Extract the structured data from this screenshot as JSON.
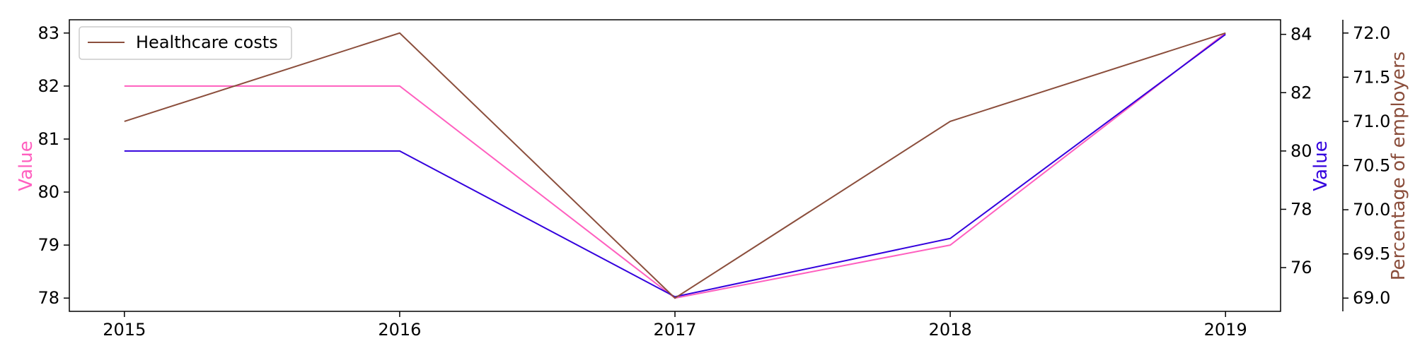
{
  "chart_data": {
    "type": "line",
    "x": [
      2015,
      2016,
      2017,
      2018,
      2019
    ],
    "xlim": [
      2014.8,
      2019.2
    ],
    "series": [
      {
        "key": "left",
        "name": "",
        "values": [
          82,
          82,
          78,
          79,
          83
        ],
        "color": "#ff5fbf",
        "axis": "left"
      },
      {
        "key": "right1",
        "name": "",
        "values": [
          80,
          80,
          75,
          77,
          84
        ],
        "color": "#3300dd",
        "axis": "right1"
      },
      {
        "key": "right2",
        "name": "Healthcare costs",
        "values": [
          71,
          72,
          69,
          71,
          72
        ],
        "color": "#8b4e3c",
        "axis": "right2"
      }
    ],
    "axes": {
      "left": {
        "label": "Value",
        "color": "#ff5fbf",
        "ylim": [
          77.75,
          83.25
        ],
        "ticks": [
          78,
          79,
          80,
          81,
          82,
          83
        ],
        "tick_labels": [
          "78",
          "79",
          "80",
          "81",
          "82",
          "83"
        ]
      },
      "right1": {
        "label": "Value",
        "color": "#3300dd",
        "ylim": [
          74.5,
          84.5
        ],
        "ticks": [
          76,
          78,
          80,
          82,
          84
        ],
        "tick_labels": [
          "76",
          "78",
          "80",
          "82",
          "84"
        ]
      },
      "right2": {
        "label": "Percentage of employers",
        "color": "#8b4e3c",
        "ylim": [
          68.85,
          72.15
        ],
        "ticks": [
          69.0,
          69.5,
          70.0,
          70.5,
          71.0,
          71.5,
          72.0
        ],
        "tick_labels": [
          "69.0",
          "69.5",
          "70.0",
          "70.5",
          "71.0",
          "71.5",
          "72.0"
        ]
      }
    },
    "x_tick_labels": [
      "2015",
      "2016",
      "2017",
      "2018",
      "2019"
    ],
    "legend": {
      "placement": "top-left",
      "entries": [
        "Healthcare costs"
      ]
    },
    "grid": false
  }
}
